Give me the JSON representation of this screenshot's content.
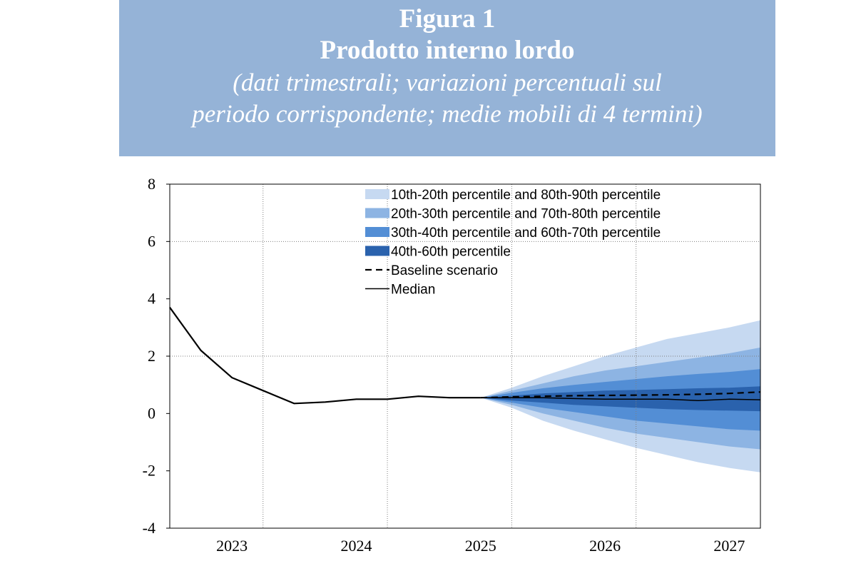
{
  "header": {
    "figure_label": "Figura 1",
    "title": "Prodotto interno lordo",
    "subtitle_line1": "(dati trimestrali; variazioni percentuali sul",
    "subtitle_line2": "periodo corrispondente; medie mobili di 4 termini)"
  },
  "colors": {
    "header_bg": "#95b3d7",
    "band_10_20": "#c6d9f1",
    "band_20_30": "#8db4e3",
    "band_30_40": "#538ed5",
    "band_40_60": "#2a62ad",
    "line": "#000000"
  },
  "chart_data": {
    "type": "area",
    "title": "Prodotto interno lordo",
    "xlabel": "",
    "ylabel": "",
    "ylim": [
      -4,
      8
    ],
    "yticks": [
      -4,
      -2,
      0,
      2,
      4,
      6,
      8
    ],
    "xlim": [
      2022.75,
      2027.5
    ],
    "year_ticks": [
      {
        "label": "2023",
        "x": 2023.25
      },
      {
        "label": "2024",
        "x": 2024.25
      },
      {
        "label": "2025",
        "x": 2025.25
      },
      {
        "label": "2026",
        "x": 2026.25
      },
      {
        "label": "2027",
        "x": 2027.25
      }
    ],
    "vertical_gridlines": [
      2023.5,
      2024.5,
      2025.5,
      2026.5
    ],
    "horizontal_gridlines": [
      2,
      6
    ],
    "legend_position": "top-right",
    "legend": [
      {
        "key": "band_10_20",
        "label": "10th-20th percentile and 80th-90th percentile"
      },
      {
        "key": "band_20_30",
        "label": "20th-30th percentile and 70th-80th percentile"
      },
      {
        "key": "band_30_40",
        "label": "30th-40th percentile and 60th-70th percentile"
      },
      {
        "key": "band_40_60",
        "label": "40th-60th percentile"
      },
      {
        "key": "baseline",
        "label": "Baseline scenario"
      },
      {
        "key": "median",
        "label": "Median"
      }
    ],
    "history": {
      "x": [
        2022.75,
        2023.0,
        2023.25,
        2023.5,
        2023.75,
        2024.0,
        2024.25,
        2024.5,
        2024.75,
        2025.0,
        2025.25
      ],
      "y": [
        3.7,
        2.2,
        1.25,
        0.8,
        0.35,
        0.4,
        0.5,
        0.5,
        0.6,
        0.55,
        0.55
      ]
    },
    "fan": {
      "x": [
        2025.25,
        2025.5,
        2025.75,
        2026.0,
        2026.25,
        2026.5,
        2026.75,
        2027.0,
        2027.25,
        2027.5
      ],
      "p10": [
        0.55,
        0.2,
        -0.25,
        -0.6,
        -0.9,
        -1.2,
        -1.45,
        -1.7,
        -1.9,
        -2.05
      ],
      "p20": [
        0.55,
        0.3,
        0.0,
        -0.25,
        -0.5,
        -0.7,
        -0.85,
        -1.0,
        -1.15,
        -1.25
      ],
      "p30": [
        0.55,
        0.38,
        0.2,
        0.05,
        -0.1,
        -0.25,
        -0.35,
        -0.45,
        -0.55,
        -0.6
      ],
      "p40": [
        0.55,
        0.45,
        0.38,
        0.3,
        0.25,
        0.2,
        0.15,
        0.12,
        0.1,
        0.08
      ],
      "p60": [
        0.55,
        0.62,
        0.7,
        0.75,
        0.8,
        0.82,
        0.85,
        0.88,
        0.9,
        0.95
      ],
      "p70": [
        0.55,
        0.72,
        0.88,
        1.0,
        1.1,
        1.2,
        1.3,
        1.38,
        1.45,
        1.55
      ],
      "p80": [
        0.55,
        0.8,
        1.05,
        1.3,
        1.5,
        1.65,
        1.8,
        1.95,
        2.1,
        2.3
      ],
      "p90": [
        0.55,
        0.9,
        1.3,
        1.65,
        2.0,
        2.3,
        2.6,
        2.8,
        3.0,
        3.25
      ],
      "median": [
        0.55,
        0.55,
        0.55,
        0.52,
        0.5,
        0.5,
        0.5,
        0.45,
        0.5,
        0.48
      ],
      "baseline": [
        0.55,
        0.58,
        0.6,
        0.62,
        0.63,
        0.64,
        0.65,
        0.67,
        0.7,
        0.75
      ]
    }
  }
}
